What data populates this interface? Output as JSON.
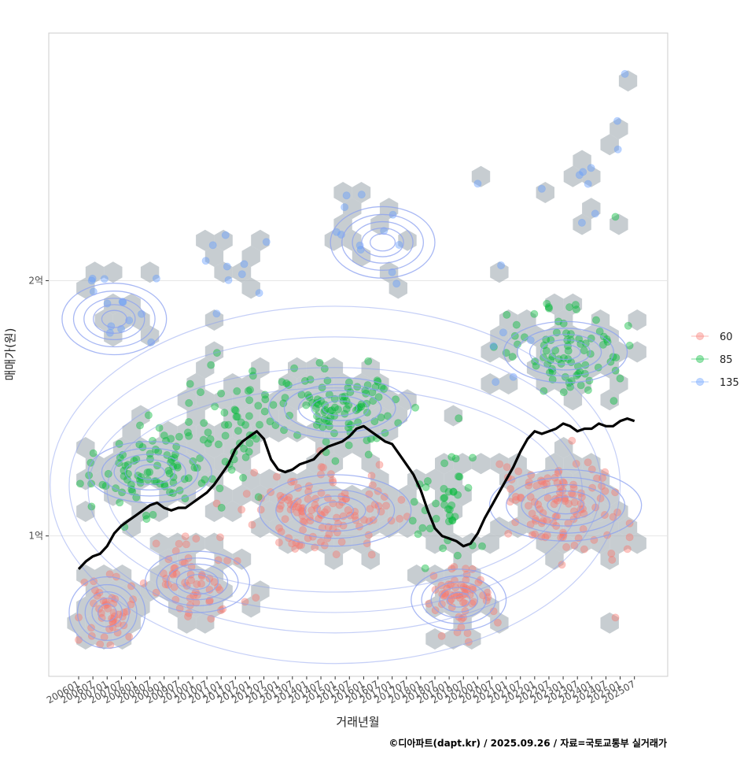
{
  "chart_data": {
    "type": "scatter",
    "title": "",
    "xlabel": "거래년월",
    "ylabel": "매매가(원)",
    "caption": "©디아파트(dapt.kr) / 2025.09.26 / 자료=국토교통부 실거래가",
    "x_tick_labels": [
      "200601",
      "200607",
      "200701",
      "200707",
      "200801",
      "200807",
      "200901",
      "200907",
      "201001",
      "201007",
      "201101",
      "201107",
      "201201",
      "201207",
      "201301",
      "201307",
      "201401",
      "201407",
      "201501",
      "201507",
      "201601",
      "201607",
      "201701",
      "201707",
      "201801",
      "201807",
      "201901",
      "201907",
      "202001",
      "202007",
      "202101",
      "202107",
      "202201",
      "202207",
      "202301",
      "202307",
      "202401",
      "202407",
      "202501",
      "202507"
    ],
    "y_ticks": [
      {
        "value": 100000000,
        "label": "1억"
      },
      {
        "value": 200000000,
        "label": "2억"
      }
    ],
    "ylim": [
      45000000,
      297000000
    ],
    "x_range_months": [
      -2,
      235
    ],
    "grid": true,
    "legend": {
      "position": "right",
      "entries": [
        {
          "label": "60",
          "color": "#f8766d"
        },
        {
          "label": "85",
          "color": "#00ba38"
        },
        {
          "label": "135",
          "color": "#619cff"
        }
      ]
    },
    "colors": {
      "hex_fill": "#a9b2b8",
      "contour": "#8ba0f0",
      "trend_line": "#000000",
      "grid": "#e6e6e6",
      "panel_border": "#cccccc"
    },
    "clusters": [
      {
        "series": "60",
        "x_center": 12,
        "x_spread": 10,
        "y_center": 70000000,
        "y_spread": 7000000,
        "count": 45
      },
      {
        "series": "60",
        "x_center": 48,
        "x_spread": 16,
        "y_center": 82000000,
        "y_spread": 7000000,
        "count": 55
      },
      {
        "series": "60",
        "x_center": 105,
        "x_spread": 28,
        "y_center": 110000000,
        "y_spread": 8000000,
        "count": 120
      },
      {
        "series": "60",
        "x_center": 160,
        "x_spread": 12,
        "y_center": 75000000,
        "y_spread": 7000000,
        "count": 60
      },
      {
        "series": "60",
        "x_center": 205,
        "x_spread": 24,
        "y_center": 112000000,
        "y_spread": 10000000,
        "count": 110
      },
      {
        "series": "85",
        "x_center": 30,
        "x_spread": 22,
        "y_center": 125000000,
        "y_spread": 8000000,
        "count": 90
      },
      {
        "series": "85",
        "x_center": 65,
        "x_spread": 14,
        "y_center": 145000000,
        "y_spread": 12000000,
        "count": 50
      },
      {
        "series": "85",
        "x_center": 110,
        "x_spread": 24,
        "y_center": 150000000,
        "y_spread": 8000000,
        "count": 100
      },
      {
        "series": "85",
        "x_center": 155,
        "x_spread": 12,
        "y_center": 115000000,
        "y_spread": 12000000,
        "count": 40
      },
      {
        "series": "85",
        "x_center": 205,
        "x_spread": 22,
        "y_center": 172000000,
        "y_spread": 9000000,
        "count": 80
      },
      {
        "series": "135",
        "x_center": 15,
        "x_spread": 12,
        "y_center": 185000000,
        "y_spread": 8000000,
        "count": 14
      },
      {
        "series": "135",
        "x_center": 65,
        "x_spread": 14,
        "y_center": 208000000,
        "y_spread": 12000000,
        "count": 10
      },
      {
        "series": "135",
        "x_center": 125,
        "x_spread": 18,
        "y_center": 218000000,
        "y_spread": 10000000,
        "count": 12
      },
      {
        "series": "135",
        "x_center": 180,
        "x_spread": 10,
        "y_center": 180000000,
        "y_spread": 15000000,
        "count": 6
      },
      {
        "series": "135",
        "x_center": 215,
        "x_spread": 12,
        "y_center": 240000000,
        "y_spread": 20000000,
        "count": 8
      }
    ],
    "outliers": [
      {
        "series": "135",
        "x": 230,
        "y": 281000000
      },
      {
        "series": "135",
        "x": 168,
        "y": 238000000
      },
      {
        "series": "135",
        "x": 195,
        "y": 236000000
      },
      {
        "series": "85",
        "x": 226,
        "y": 225000000
      },
      {
        "series": "60",
        "x": 226,
        "y": 68000000
      }
    ],
    "contour_centers": [
      {
        "x": 12,
        "y": 70000000,
        "rx": 16,
        "ry": 14000000
      },
      {
        "x": 50,
        "y": 82000000,
        "rx": 22,
        "ry": 12000000
      },
      {
        "x": 30,
        "y": 125000000,
        "rx": 26,
        "ry": 12000000
      },
      {
        "x": 108,
        "y": 110000000,
        "rx": 32,
        "ry": 14000000
      },
      {
        "x": 110,
        "y": 150000000,
        "rx": 30,
        "ry": 12000000
      },
      {
        "x": 160,
        "y": 75000000,
        "rx": 20,
        "ry": 12000000
      },
      {
        "x": 205,
        "y": 112000000,
        "rx": 32,
        "ry": 14000000
      },
      {
        "x": 205,
        "y": 172000000,
        "rx": 26,
        "ry": 12000000
      },
      {
        "x": 128,
        "y": 215000000,
        "rx": 22,
        "ry": 14000000
      },
      {
        "x": 15,
        "y": 185000000,
        "rx": 22,
        "ry": 14000000
      }
    ],
    "trend_line": {
      "name": "moving average",
      "x": [
        0,
        3,
        6,
        9,
        12,
        15,
        18,
        21,
        24,
        27,
        30,
        33,
        36,
        39,
        42,
        45,
        48,
        51,
        54,
        57,
        60,
        63,
        66,
        69,
        72,
        75,
        78,
        81,
        84,
        87,
        90,
        93,
        96,
        99,
        102,
        105,
        108,
        111,
        114,
        117,
        120,
        123,
        126,
        129,
        132,
        135,
        138,
        141,
        144,
        147,
        150,
        153,
        156,
        159,
        162,
        165,
        168,
        171,
        174,
        177,
        180,
        183,
        186,
        189,
        192,
        195,
        198,
        201,
        204,
        207,
        210,
        213,
        216,
        219,
        222,
        225,
        228,
        231,
        234
      ],
      "y": [
        87,
        90,
        92,
        93,
        96,
        101,
        104,
        106,
        108,
        110,
        112,
        113,
        111,
        110,
        111,
        111,
        113,
        115,
        117,
        120,
        124,
        128,
        134,
        137,
        139,
        141,
        138,
        130,
        126,
        125,
        126,
        128,
        129,
        130,
        133,
        135,
        136,
        137,
        139,
        142,
        143,
        141,
        139,
        137,
        136,
        132,
        128,
        124,
        118,
        110,
        103,
        100,
        99,
        98,
        96,
        97,
        101,
        107,
        112,
        117,
        122,
        127,
        133,
        138,
        141,
        140,
        141,
        142,
        144,
        143,
        141,
        142,
        142,
        144,
        143,
        143,
        145,
        146,
        145
      ]
    }
  }
}
